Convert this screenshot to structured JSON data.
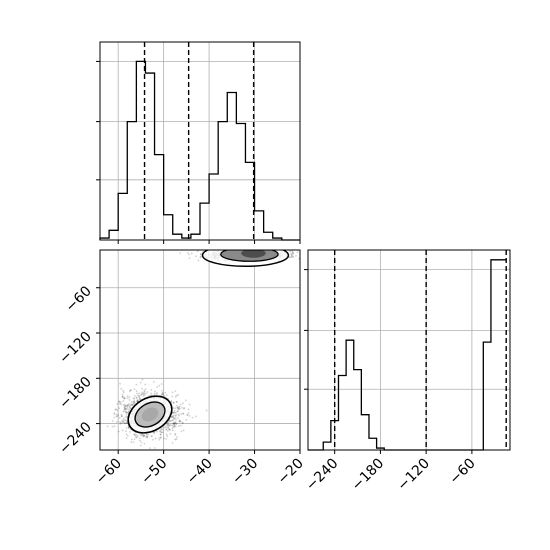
{
  "chart_data": [
    {
      "panel": "histogram-param-1",
      "type": "histogram",
      "xlim": [
        -64,
        -20
      ],
      "ylim": [
        0,
        1.02
      ],
      "grid": true,
      "bin_edges": [
        -64,
        -62,
        -60,
        -58,
        -56,
        -54,
        -52,
        -50,
        -48,
        -46,
        -44,
        -42,
        -40,
        -38,
        -36,
        -34,
        -32,
        -30,
        -28,
        -26,
        -24,
        -22,
        -20
      ],
      "counts": [
        0.01,
        0.05,
        0.24,
        0.61,
        0.92,
        0.86,
        0.44,
        0.13,
        0.03,
        0.01,
        0.03,
        0.19,
        0.34,
        0.61,
        0.76,
        0.6,
        0.4,
        0.15,
        0.04,
        0.01,
        0,
        0
      ],
      "quantile_lines": [
        -54.2,
        -44.5,
        -30.2
      ],
      "ytick_values": [
        0.31,
        0.61,
        0.92
      ],
      "ytick_labels": [
        "",
        "",
        ""
      ],
      "xtick_values": [
        -60,
        -50,
        -40,
        -30,
        -20
      ],
      "xtick_labels": [
        "",
        "",
        "",
        "",
        ""
      ]
    },
    {
      "panel": "joint-param-1-param-2",
      "type": "heatmap",
      "xlim": [
        -64,
        -20
      ],
      "ylim": [
        -275,
        -10
      ],
      "grid": true,
      "xtick_values": [
        -60,
        -50,
        -40,
        -30,
        -20
      ],
      "xtick_labels": [
        "−60",
        "−50",
        "−40",
        "−30",
        "−20"
      ],
      "ytick_values": [
        -60,
        -120,
        -180,
        -240
      ],
      "ytick_labels": [
        "−60",
        "−120",
        "−180",
        "−240"
      ],
      "clusters": [
        {
          "center": [
            -53,
            -228
          ],
          "spread": [
            3.2,
            14
          ],
          "density": 0.55
        },
        {
          "center": [
            -32,
            -17
          ],
          "spread": [
            4.5,
            3.5
          ],
          "density": 0.45
        }
      ]
    },
    {
      "panel": "histogram-param-2",
      "type": "histogram",
      "xlim": [
        -275,
        -10
      ],
      "ylim": [
        0,
        1.02
      ],
      "grid": true,
      "bin_edges": [
        -275,
        -265,
        -255,
        -245,
        -235,
        -225,
        -215,
        -205,
        -195,
        -185,
        -175,
        -165,
        -155,
        -145,
        -135,
        -125,
        -115,
        -105,
        -95,
        -85,
        -75,
        -65,
        -55,
        -45,
        -35,
        -25,
        -15
      ],
      "counts": [
        0,
        0,
        0.04,
        0.15,
        0.38,
        0.56,
        0.41,
        0.18,
        0.06,
        0.01,
        0,
        0,
        0,
        0,
        0,
        0,
        0,
        0,
        0,
        0,
        0,
        0,
        0,
        0.55,
        0.97,
        0.97
      ],
      "quantile_lines": [
        -240,
        -120,
        -15
      ],
      "ytick_values": [
        0.31,
        0.61,
        0.92
      ],
      "ytick_labels": [
        "",
        "",
        ""
      ],
      "xtick_values": [
        -240,
        -180,
        -120,
        -60
      ],
      "xtick_labels": [
        "−240",
        "−180",
        "−120",
        "−60"
      ]
    }
  ],
  "palette": {
    "line": "#000000",
    "grid": "#b0b0b0",
    "contour_fill_light": "#bcbcbc",
    "contour_fill_dark": "#4d4d4d"
  }
}
